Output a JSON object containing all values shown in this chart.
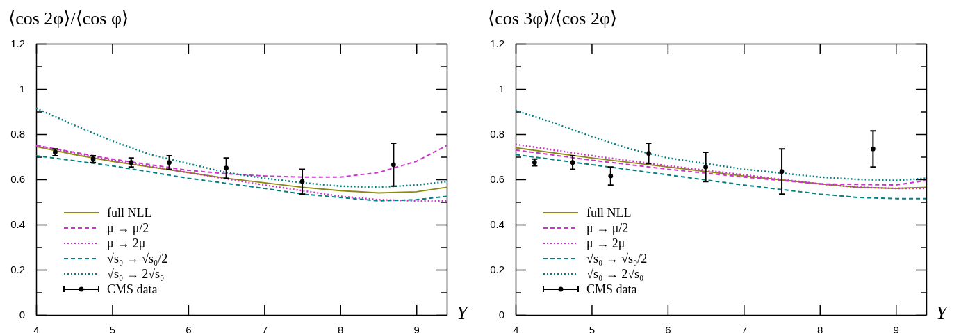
{
  "chart_data": [
    {
      "type": "line",
      "title": "⟨cos 2φ⟩/⟨cos φ⟩",
      "xlabel": "Y",
      "xlim": [
        4,
        9.4
      ],
      "ylim": [
        0,
        1.2
      ],
      "xticks": [
        4,
        5,
        6,
        7,
        8,
        9
      ],
      "yticks": [
        0,
        {
          "value": 0.1,
          "label": null
        },
        0.2,
        {
          "value": 0.3,
          "label": null
        },
        0.4,
        {
          "value": 0.5,
          "label": null
        },
        0.6,
        {
          "value": 0.7,
          "label": null
        },
        0.8,
        {
          "value": 0.9,
          "label": null
        },
        1,
        {
          "value": 1.1,
          "label": null
        },
        1.2
      ],
      "legend": "bottom left",
      "grid": false,
      "series": [
        {
          "name": "full NLL",
          "line_style": "solid",
          "color": "#8a8a10",
          "x": [
            4,
            4.5,
            5,
            5.5,
            6,
            6.5,
            7,
            7.5,
            8,
            8.5,
            9,
            9.4
          ],
          "values": [
            0.745,
            0.71,
            0.68,
            0.655,
            0.63,
            0.605,
            0.585,
            0.565,
            0.55,
            0.54,
            0.545,
            0.565
          ]
        },
        {
          "name": "μ → μ/2",
          "line_style": "dashed",
          "color": "#cc33cc",
          "x": [
            4,
            5,
            6,
            6.5,
            7,
            7.5,
            8,
            8.5,
            9,
            9.4
          ],
          "values": [
            0.75,
            0.69,
            0.64,
            0.625,
            0.615,
            0.61,
            0.61,
            0.63,
            0.68,
            0.75
          ]
        },
        {
          "name": "μ → 2μ",
          "line_style": "dotted",
          "color": "#cc33cc",
          "x": [
            4,
            5,
            6,
            7,
            7.5,
            8,
            8.5,
            9,
            9.4
          ],
          "values": [
            0.75,
            0.685,
            0.63,
            0.575,
            0.55,
            0.525,
            0.51,
            0.505,
            0.505
          ]
        },
        {
          "name": "√s₀ → √s₀/2",
          "line_style": "dashed",
          "color": "#008080",
          "x": [
            4,
            5,
            6,
            7,
            7.5,
            8,
            8.5,
            9,
            9.4
          ],
          "values": [
            0.705,
            0.66,
            0.605,
            0.56,
            0.535,
            0.52,
            0.505,
            0.51,
            0.525
          ]
        },
        {
          "name": "√s₀ → 2√s₀",
          "line_style": "dotted",
          "color": "#008080",
          "x": [
            4,
            4.5,
            5,
            5.5,
            6,
            6.5,
            7,
            7.5,
            8,
            8.5,
            9,
            9.4
          ],
          "values": [
            0.915,
            0.84,
            0.77,
            0.71,
            0.67,
            0.63,
            0.605,
            0.585,
            0.57,
            0.565,
            0.575,
            0.59
          ]
        },
        {
          "name": "CMS data",
          "type": "scatter",
          "marker": "circle",
          "color": "#000000",
          "x": [
            4.25,
            4.75,
            5.25,
            5.75,
            6.5,
            7.5,
            8.7
          ],
          "values": [
            0.72,
            0.69,
            0.675,
            0.675,
            0.65,
            0.59,
            0.665
          ],
          "errors": [
            0.015,
            0.015,
            0.02,
            0.03,
            0.045,
            0.055,
            0.095
          ]
        }
      ]
    },
    {
      "type": "line",
      "title": "⟨cos 3φ⟩/⟨cos 2φ⟩",
      "xlabel": "Y",
      "xlim": [
        4,
        9.4
      ],
      "ylim": [
        0,
        1.2
      ],
      "xticks": [
        4,
        5,
        6,
        7,
        8,
        9
      ],
      "yticks": [
        0,
        {
          "value": 0.1,
          "label": null
        },
        0.2,
        {
          "value": 0.3,
          "label": null
        },
        0.4,
        {
          "value": 0.5,
          "label": null
        },
        0.6,
        {
          "value": 0.7,
          "label": null
        },
        0.8,
        {
          "value": 0.9,
          "label": null
        },
        1,
        {
          "value": 1.1,
          "label": null
        },
        1.2
      ],
      "legend": "bottom left",
      "grid": false,
      "series": [
        {
          "name": "full NLL",
          "line_style": "solid",
          "color": "#8a8a10",
          "x": [
            4,
            5,
            6,
            7,
            8,
            8.5,
            9,
            9.4
          ],
          "values": [
            0.74,
            0.695,
            0.655,
            0.615,
            0.58,
            0.565,
            0.56,
            0.565
          ]
        },
        {
          "name": "μ → μ/2",
          "line_style": "dashed",
          "color": "#cc33cc",
          "x": [
            4,
            5,
            6,
            7,
            8,
            9,
            9.4
          ],
          "values": [
            0.73,
            0.685,
            0.645,
            0.61,
            0.58,
            0.575,
            0.595
          ]
        },
        {
          "name": "μ → 2μ",
          "line_style": "dotted",
          "color": "#cc33cc",
          "x": [
            4,
            5,
            6,
            7,
            8,
            8.5,
            9,
            9.4
          ],
          "values": [
            0.755,
            0.705,
            0.66,
            0.62,
            0.58,
            0.565,
            0.56,
            0.56
          ]
        },
        {
          "name": "√s₀ → √s₀/2",
          "line_style": "dashed",
          "color": "#008080",
          "x": [
            4,
            5,
            6,
            7,
            8,
            8.5,
            9,
            9.4
          ],
          "values": [
            0.71,
            0.665,
            0.62,
            0.575,
            0.535,
            0.52,
            0.515,
            0.515
          ]
        },
        {
          "name": "√s₀ → 2√s₀",
          "line_style": "dotted",
          "color": "#008080",
          "x": [
            4,
            4.5,
            5,
            5.5,
            6,
            7,
            8,
            8.5,
            9,
            9.4
          ],
          "values": [
            0.905,
            0.85,
            0.79,
            0.735,
            0.695,
            0.645,
            0.61,
            0.6,
            0.595,
            0.605
          ]
        },
        {
          "name": "CMS data",
          "type": "scatter",
          "marker": "circle",
          "color": "#000000",
          "x": [
            4.25,
            4.75,
            5.25,
            5.75,
            6.5,
            7.5,
            8.7
          ],
          "values": [
            0.675,
            0.675,
            0.615,
            0.715,
            0.655,
            0.635,
            0.735
          ],
          "errors": [
            0.015,
            0.03,
            0.04,
            0.045,
            0.065,
            0.1,
            0.08
          ]
        }
      ]
    }
  ]
}
